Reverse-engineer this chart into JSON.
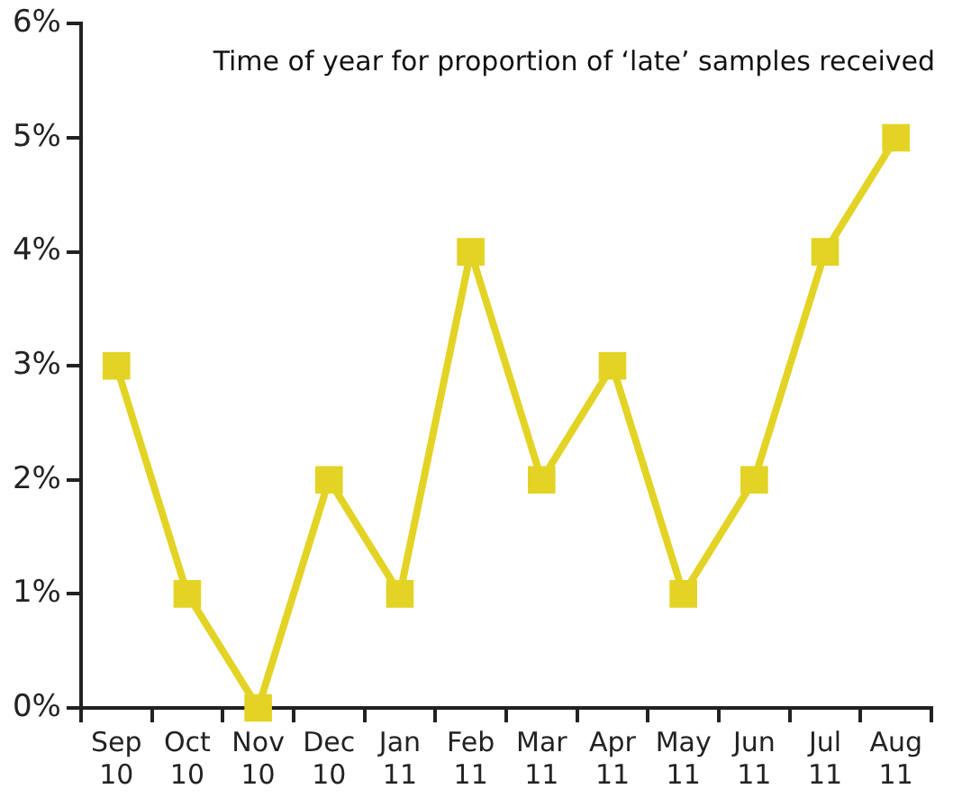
{
  "chart_data": {
    "type": "line",
    "title": "Time of year for proportion of ‘late’ samples received",
    "categories": [
      "Sep 10",
      "Oct 10",
      "Nov 10",
      "Dec 10",
      "Jan 11",
      "Feb 11",
      "Mar 11",
      "Apr 11",
      "May 11",
      "Jun 11",
      "Jul 11",
      "Aug 11"
    ],
    "series": [
      {
        "color": "#e3d324",
        "values": [
          3,
          1,
          0,
          2,
          1,
          4,
          2,
          3,
          1,
          2,
          4,
          5
        ]
      }
    ],
    "ylim": [
      0,
      6
    ],
    "yticks": [
      {
        "value": 0,
        "label": "0%"
      },
      {
        "value": 1,
        "label": "1%"
      },
      {
        "value": 2,
        "label": "2%"
      },
      {
        "value": 3,
        "label": "3%"
      },
      {
        "value": 4,
        "label": "4%"
      },
      {
        "value": 5,
        "label": "5%"
      },
      {
        "value": 6,
        "label": "6%"
      }
    ],
    "grid": false,
    "legend": false,
    "marker": "square",
    "line_style": "solid"
  }
}
